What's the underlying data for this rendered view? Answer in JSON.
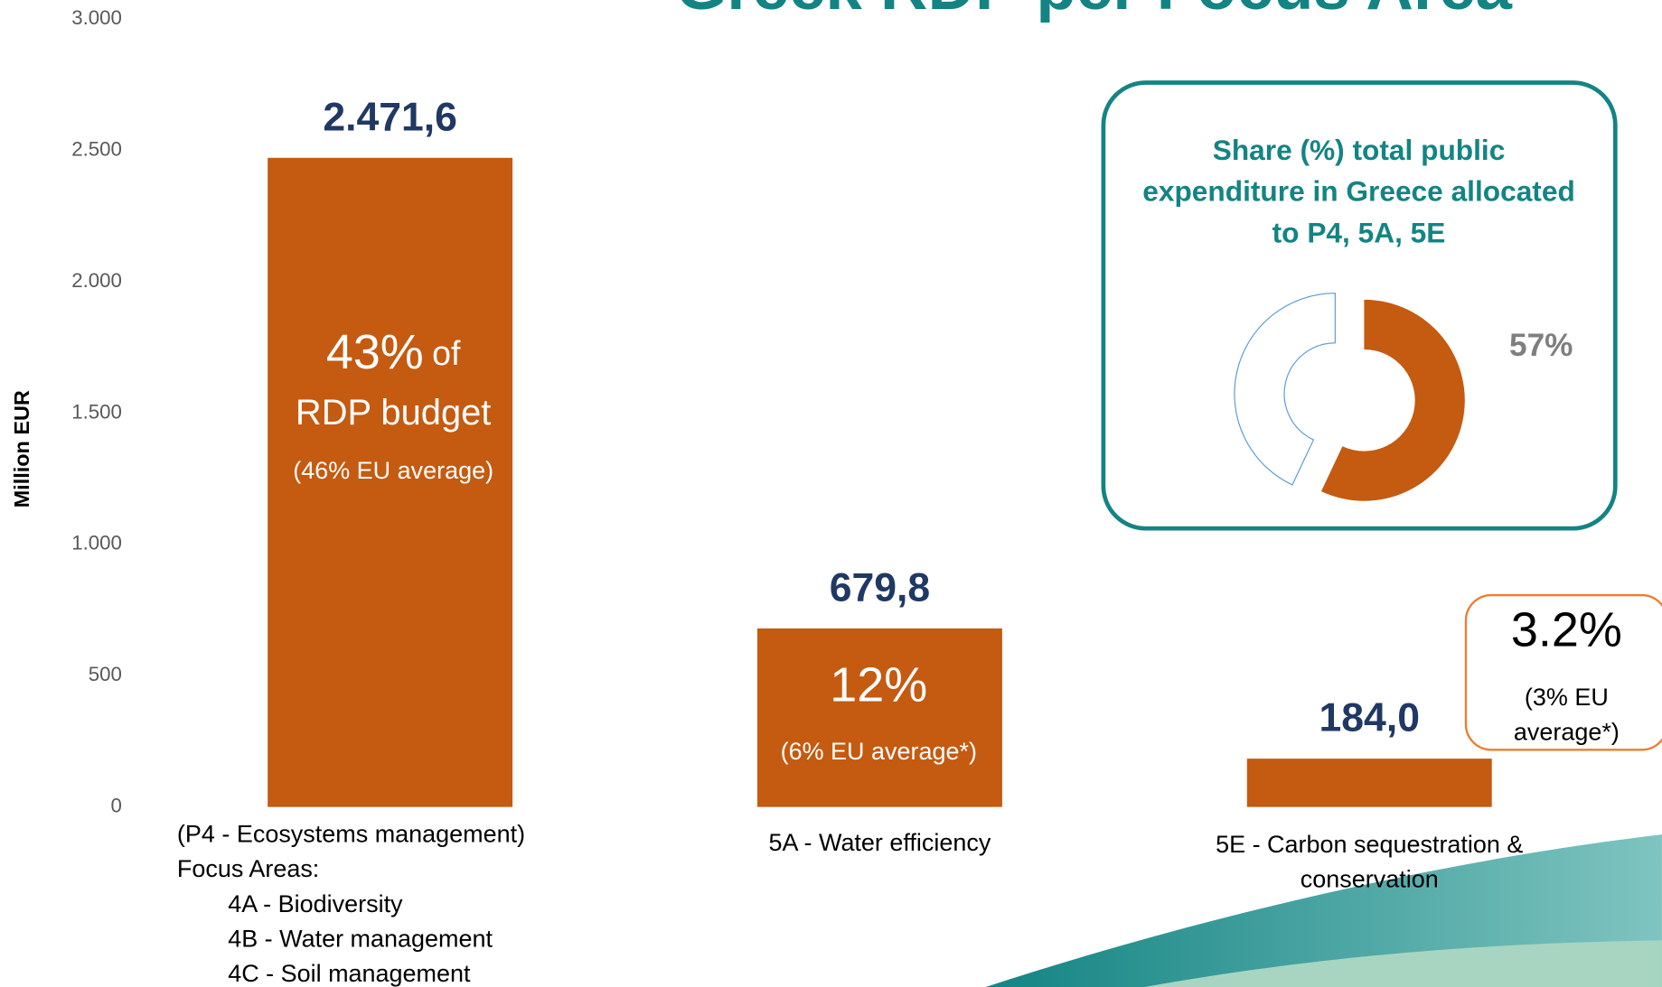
{
  "chart_data": [
    {
      "type": "bar",
      "title": "Greek RDP per Focus Area",
      "y_label": "Million EUR",
      "categories": [
        "(P4 - Ecosystems management)",
        "5A - Water efficiency",
        "5E - Carbon sequestration & conservation"
      ],
      "focus_areas": {
        "title": "Focus Areas:",
        "items": [
          "4A - Biodiversity",
          "4B - Water management",
          "4C - Soil management"
        ]
      },
      "values": [
        2471.6,
        679.8,
        184.0
      ],
      "value_labels": [
        "2.471,6",
        "679,8",
        "184,0"
      ],
      "color": "#c55a11",
      "ylim": [
        0,
        3000
      ],
      "yticks": [
        0,
        500,
        {
          "value": 1000,
          "label": "1.000"
        },
        {
          "value": 1500,
          "label": "1.500"
        },
        {
          "value": 2000,
          "label": "2.000"
        },
        {
          "value": 2500,
          "label": "2.500"
        },
        {
          "value": 3000,
          "label": "3.000"
        }
      ],
      "bar_notes": [
        {
          "big": "43%",
          "small": "of",
          "line2": "RDP budget",
          "eu": "(46% EU average)"
        },
        {
          "big": "12%",
          "eu": "(6% EU average*)"
        },
        {
          "big": "3.2%",
          "eu": "(3% EU average*)"
        }
      ]
    },
    {
      "type": "donut",
      "title": "Share (%) total public expenditure in Greece allocated to P4, 5A, 5E",
      "values": [
        57,
        43
      ],
      "value_labels": [
        "57%",
        null
      ],
      "colors": [
        "#c55a11",
        "#ffffff"
      ]
    }
  ]
}
